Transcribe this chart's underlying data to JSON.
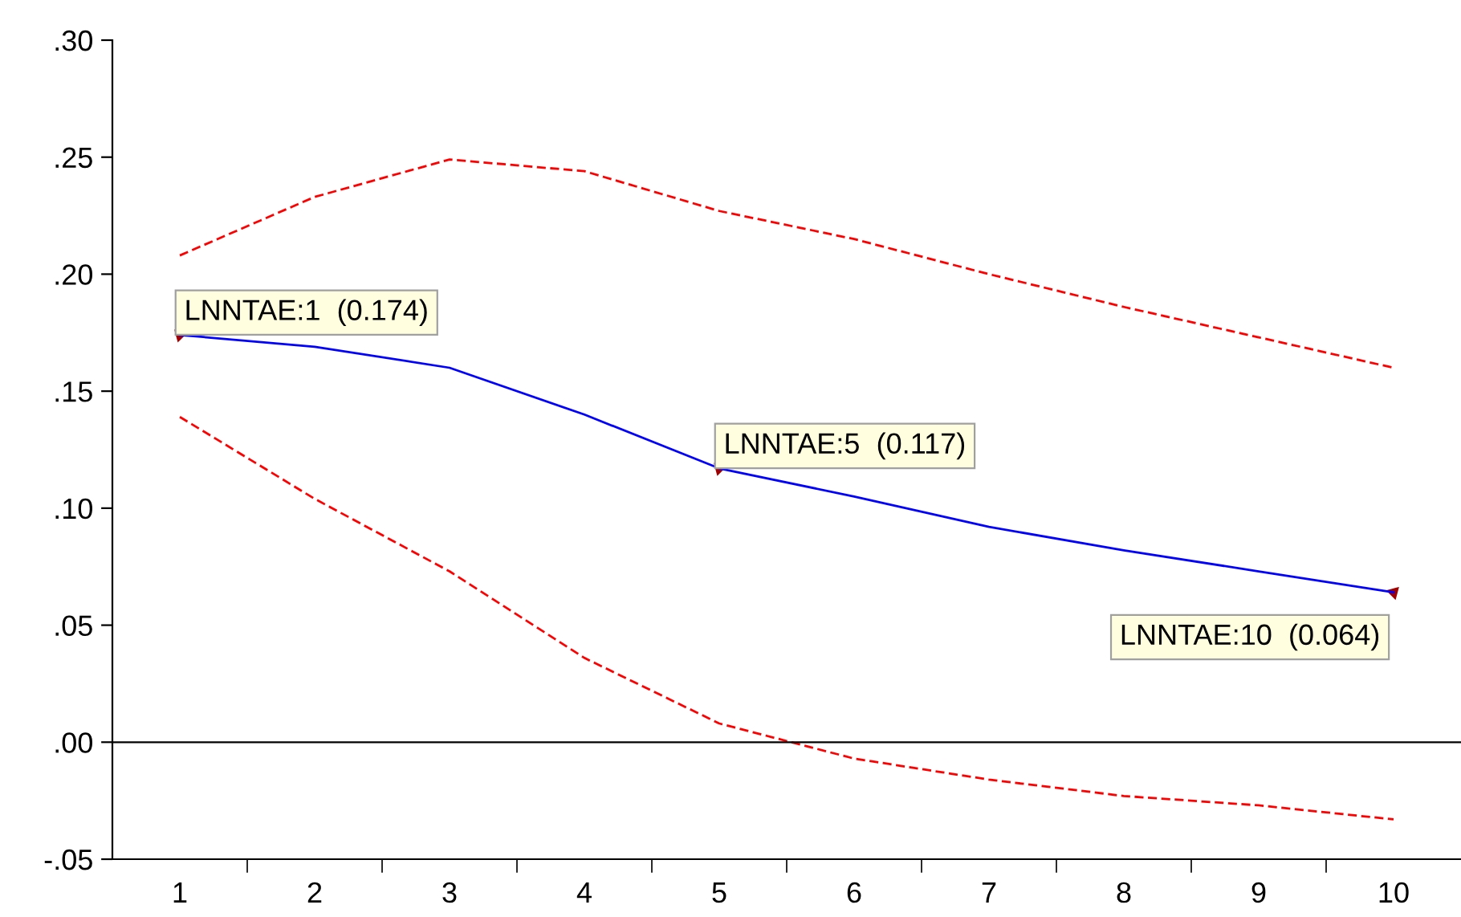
{
  "chart_data": {
    "type": "line",
    "categories": [
      "1",
      "2",
      "3",
      "4",
      "5",
      "6",
      "7",
      "8",
      "9",
      "10"
    ],
    "series": [
      {
        "color": "#0000ff",
        "line_style": "solid",
        "values": [
          0.174,
          0.169,
          0.16,
          0.14,
          0.117,
          0.105,
          0.092,
          0.082,
          0.073,
          0.064
        ]
      },
      {
        "color": "#ff0000",
        "line_style": "dashed",
        "values": [
          0.208,
          0.233,
          0.249,
          0.244,
          0.227,
          0.215,
          0.2,
          0.186,
          0.173,
          0.16
        ]
      },
      {
        "color": "#ff0000",
        "line_style": "dashed",
        "values": [
          0.139,
          0.104,
          0.073,
          0.036,
          0.008,
          -0.007,
          -0.016,
          -0.023,
          -0.027,
          -0.033
        ]
      }
    ],
    "ylim": [
      -0.05,
      0.3
    ],
    "yticks": [
      {
        "value": -0.05,
        "label": "-.05"
      },
      {
        "value": 0.0,
        "label": ".00"
      },
      {
        "value": 0.05,
        "label": ".05"
      },
      {
        "value": 0.1,
        "label": ".10"
      },
      {
        "value": 0.15,
        "label": ".15"
      },
      {
        "value": 0.2,
        "label": ".20"
      },
      {
        "value": 0.25,
        "label": ".25"
      },
      {
        "value": 0.3,
        "label": ".30"
      }
    ],
    "ref_lines": [
      {
        "axis": "y",
        "value": 0.0,
        "color": "#000000",
        "line_style": "solid"
      }
    ],
    "annotations": [
      {
        "text": "LNNTAE:1  (0.174)",
        "x": "1",
        "y": 0.174
      },
      {
        "text": "LNNTAE:5  (0.117)",
        "x": "5",
        "y": 0.117
      },
      {
        "text": "LNNTAE:10  (0.064)",
        "x": "10",
        "y": 0.064
      }
    ],
    "grid": false,
    "marker": "none"
  }
}
